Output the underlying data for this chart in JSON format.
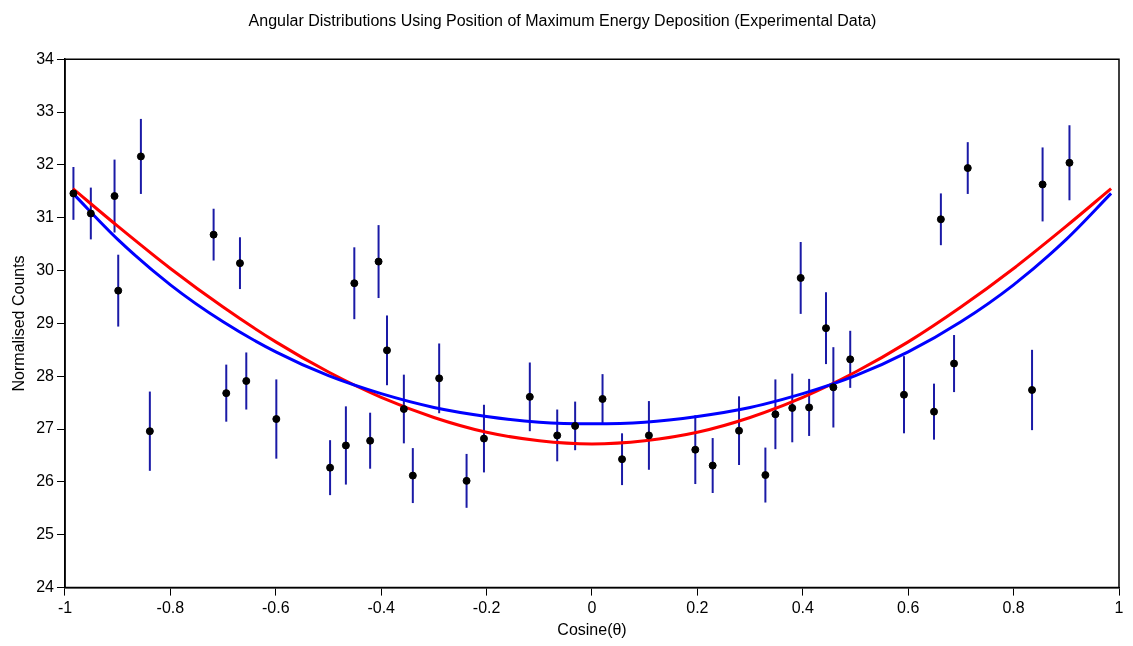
{
  "chart_data": {
    "type": "scatter",
    "title": "Angular Distributions Using Position of Maximum Energy Deposition (Experimental Data)",
    "xlabel": "Cosine(θ)",
    "ylabel": "Normalised Counts",
    "xlim": [
      -1,
      1
    ],
    "xticks": [
      -1,
      -0.8,
      -0.6,
      -0.4,
      -0.2,
      0,
      0.2,
      0.4,
      0.6,
      0.8,
      1
    ],
    "ylim": [
      24,
      34
    ],
    "yticks": [
      24,
      25,
      26,
      27,
      28,
      29,
      30,
      31,
      32,
      33,
      34
    ],
    "marker": "circle",
    "legend": false,
    "grid": false,
    "series": [
      {
        "color": "#000000",
        "x": [
          -0.984,
          -0.951,
          -0.906,
          -0.899,
          -0.856,
          -0.839,
          -0.718,
          -0.694,
          -0.668,
          -0.656,
          -0.599,
          -0.497,
          -0.467,
          -0.451,
          -0.421,
          -0.405,
          -0.389,
          -0.357,
          -0.34,
          -0.29,
          -0.238,
          -0.205,
          -0.118,
          -0.066,
          -0.032,
          0.02,
          0.057,
          0.108,
          0.196,
          0.229,
          0.279,
          0.329,
          0.348,
          0.38,
          0.396,
          0.412,
          0.444,
          0.458,
          0.49,
          0.592,
          0.649,
          0.662,
          0.687,
          0.713,
          0.835,
          0.855,
          0.906
        ],
        "values": [
          31.46,
          31.08,
          31.41,
          29.62,
          32.16,
          26.96,
          30.68,
          27.68,
          30.14,
          27.91,
          27.19,
          26.27,
          26.69,
          29.76,
          26.78,
          30.17,
          28.49,
          27.38,
          26.12,
          27.96,
          26.02,
          26.82,
          27.61,
          26.88,
          27.06,
          27.57,
          26.43,
          26.88,
          26.61,
          26.31,
          26.97,
          26.13,
          27.28,
          27.4,
          29.86,
          27.41,
          28.91,
          27.79,
          28.32,
          27.65,
          27.33,
          30.97,
          28.24,
          31.94,
          27.74,
          31.63,
          32.04
        ],
        "errors": [
          0.5,
          0.49,
          0.69,
          0.68,
          0.71,
          0.75,
          0.49,
          0.54,
          0.49,
          0.54,
          0.75,
          0.52,
          0.74,
          0.68,
          0.53,
          0.69,
          0.66,
          0.65,
          0.52,
          0.66,
          0.51,
          0.64,
          0.65,
          0.49,
          0.46,
          0.47,
          0.49,
          0.65,
          0.65,
          0.52,
          0.65,
          0.52,
          0.66,
          0.65,
          0.68,
          0.54,
          0.68,
          0.76,
          0.54,
          0.73,
          0.53,
          0.49,
          0.54,
          0.49,
          0.76,
          0.7,
          0.71
        ]
      },
      {
        "type": "line",
        "color": "#0000ff",
        "marker": "none",
        "x": [
          -0.985,
          -0.9,
          -0.8,
          -0.7,
          -0.6,
          -0.5,
          -0.4,
          -0.3,
          -0.2,
          -0.1,
          0,
          0.1,
          0.2,
          0.3,
          0.4,
          0.5,
          0.6,
          0.7,
          0.8,
          0.9,
          0.985
        ],
        "values": [
          31.46,
          30.59,
          29.73,
          29.03,
          28.46,
          28.01,
          27.67,
          27.41,
          27.24,
          27.13,
          27.1,
          27.13,
          27.24,
          27.41,
          27.67,
          28.01,
          28.46,
          29.03,
          29.73,
          30.59,
          31.46
        ]
      },
      {
        "type": "line",
        "color": "#ff0000",
        "marker": "none",
        "x": [
          -0.985,
          -0.9,
          -0.8,
          -0.7,
          -0.6,
          -0.5,
          -0.4,
          -0.3,
          -0.2,
          -0.1,
          0,
          0.1,
          0.2,
          0.3,
          0.4,
          0.5,
          0.6,
          0.7,
          0.8,
          0.9,
          0.985
        ],
        "values": [
          31.55,
          30.84,
          30.04,
          29.31,
          28.65,
          28.08,
          27.6,
          27.22,
          26.94,
          26.78,
          26.72,
          26.78,
          26.94,
          27.22,
          27.6,
          28.08,
          28.65,
          29.31,
          30.04,
          30.84,
          31.55
        ]
      }
    ]
  }
}
